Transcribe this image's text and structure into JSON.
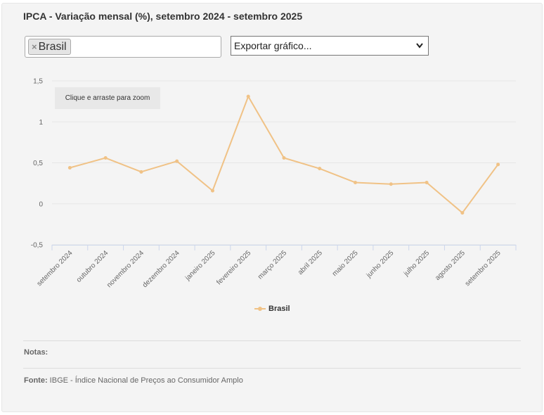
{
  "title": "IPCA - Variação mensal (%), setembro 2024 - setembro 2025",
  "filter": {
    "tag_label": "Brasil",
    "remove_glyph": "×"
  },
  "export": {
    "label": "Exportar gráfico...",
    "chevron_icon": "chevron-down-icon"
  },
  "zoom_hint": "Clique e arraste para zoom",
  "chart_data": {
    "type": "line",
    "categories": [
      "setembro 2024",
      "outubro 2024",
      "novembro 2024",
      "dezembro 2024",
      "janeiro 2025",
      "fevereiro 2025",
      "março 2025",
      "abril 2025",
      "maio 2025",
      "junho 2025",
      "julho 2025",
      "agosto 2025",
      "setembro 2025"
    ],
    "series": [
      {
        "name": "Brasil",
        "values": [
          0.44,
          0.56,
          0.39,
          0.52,
          0.16,
          1.31,
          0.56,
          0.43,
          0.26,
          0.24,
          0.26,
          -0.11,
          0.48
        ],
        "color": "#f0c286"
      }
    ],
    "yticks": [
      "1,5",
      "1",
      "0,5",
      "0",
      "-0,5"
    ],
    "ylim": [
      -0.5,
      1.5
    ],
    "grid": true,
    "legend_position": "bottom-center"
  },
  "notes_label": "Notas:",
  "source": {
    "label": "Fonte:",
    "text": "IBGE - Índice Nacional de Preços ao Consumidor Amplo"
  }
}
